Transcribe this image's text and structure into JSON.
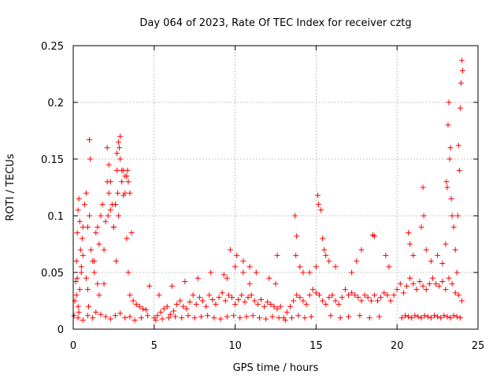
{
  "chart_data": {
    "type": "scatter",
    "title": "Day 064 of 2023, Rate Of TEC Index for receiver cztg",
    "xlabel": "GPS time / hours",
    "ylabel": "ROTI / TECUs",
    "xlim": [
      0,
      25
    ],
    "ylim": [
      0,
      0.25
    ],
    "xticks": [
      0,
      5,
      10,
      15,
      20,
      25
    ],
    "yticks": [
      0,
      0.05,
      0.1,
      0.15,
      0.2,
      0.25
    ],
    "xtick_labels": [
      "0",
      "5",
      "10",
      "15",
      "20",
      "25"
    ],
    "ytick_labels": [
      "0",
      "0.05",
      "0.1",
      "0.15",
      "0.2",
      "0.25"
    ],
    "grid": true,
    "legend": "none",
    "marker": "+",
    "color": "#ff0000",
    "series": [
      {
        "x": [
          0.05,
          0.1,
          0.15,
          0.2,
          0.25,
          0.3,
          0.35,
          0.4,
          0.45,
          0.5,
          0.55,
          0.6,
          0.7,
          0.8,
          0.9,
          1.0,
          1.1,
          1.2,
          1.3,
          1.4,
          1.5,
          1.6,
          1.7,
          1.8,
          1.9,
          2.0,
          2.1,
          2.2,
          2.3,
          2.4,
          2.5,
          2.6,
          2.7,
          2.8,
          2.9,
          3.0,
          3.1,
          3.2,
          3.3,
          3.4,
          3.5,
          3.7,
          3.9,
          4.1,
          4.3,
          4.5,
          4.7,
          0.2,
          0.25,
          0.3,
          0.35,
          0.4,
          0.5,
          0.6,
          0.8,
          0.9,
          0.95,
          1.0,
          1.05,
          1.3,
          1.5,
          1.6,
          1.9,
          2.1,
          2.15,
          2.2,
          2.3,
          2.5,
          2.6,
          2.65,
          2.7,
          2.75,
          2.8,
          2.85,
          2.9,
          3.0,
          3.1,
          3.2,
          3.3,
          3.35,
          3.4,
          3.5,
          3.6,
          0.3,
          0.6,
          0.9,
          1.2,
          1.4,
          1.7,
          2.0,
          2.3,
          2.6,
          2.9,
          3.2,
          3.5,
          3.8,
          4.2,
          4.6,
          5.0,
          5.2,
          5.4,
          5.6,
          5.8,
          6.0,
          6.2,
          6.4,
          6.6,
          6.8,
          7.0,
          7.2,
          7.4,
          7.6,
          7.8,
          8.0,
          8.2,
          8.4,
          8.6,
          8.8,
          9.0,
          9.2,
          9.4,
          9.6,
          9.8,
          10.0,
          10.2,
          10.4,
          10.6,
          10.8,
          11.0,
          11.2,
          11.4,
          11.6,
          11.8,
          12.0,
          12.2,
          12.4,
          12.6,
          12.8,
          5.1,
          5.5,
          5.9,
          6.3,
          6.7,
          7.1,
          7.5,
          7.9,
          8.3,
          8.7,
          9.1,
          9.5,
          9.9,
          10.3,
          10.7,
          11.1,
          11.5,
          11.9,
          12.3,
          12.7,
          5.3,
          6.1,
          6.9,
          7.7,
          8.5,
          9.3,
          9.7,
          10.1,
          10.5,
          10.9,
          11.3,
          12.1,
          12.5,
          9.5,
          10.0,
          10.5,
          10.9,
          12.6,
          13.0,
          13.2,
          13.4,
          13.6,
          13.8,
          14.0,
          14.2,
          14.4,
          14.6,
          14.8,
          15.0,
          15.2,
          15.4,
          15.6,
          15.8,
          16.0,
          16.2,
          16.4,
          16.6,
          16.8,
          17.0,
          17.2,
          17.4,
          17.6,
          17.8,
          18.0,
          18.2,
          18.4,
          18.6,
          18.8,
          19.0,
          19.2,
          19.4,
          13.7,
          13.8,
          13.75,
          14.0,
          14.2,
          14.6,
          15.0,
          15.1,
          15.15,
          15.3,
          15.4,
          15.5,
          15.6,
          15.8,
          16.2,
          17.2,
          17.5,
          17.8,
          18.5,
          18.6,
          19.3,
          19.5,
          13.1,
          13.5,
          13.9,
          14.3,
          14.7,
          15.9,
          16.5,
          17.0,
          17.7,
          18.3,
          18.9,
          19.6,
          19.8,
          20.0,
          20.2,
          20.4,
          20.6,
          20.8,
          21.0,
          21.2,
          21.4,
          21.6,
          21.8,
          22.0,
          22.2,
          22.4,
          22.6,
          22.8,
          23.0,
          23.2,
          23.4,
          23.6,
          23.8,
          24.0,
          20.3,
          20.5,
          20.7,
          20.9,
          21.1,
          21.3,
          21.5,
          21.7,
          21.9,
          22.1,
          22.3,
          22.5,
          22.7,
          22.9,
          23.1,
          23.3,
          23.5,
          23.7,
          23.9,
          20.7,
          20.8,
          21.0,
          21.5,
          21.6,
          21.65,
          21.8,
          22.1,
          22.5,
          22.8,
          23.0,
          23.05,
          23.1,
          23.15,
          23.2,
          23.25,
          23.3,
          23.35,
          23.4,
          23.5,
          23.6,
          23.7,
          23.75,
          23.8,
          23.85,
          23.9,
          23.95,
          24.0,
          24.05
        ],
        "y": [
          0.012,
          0.025,
          0.042,
          0.06,
          0.085,
          0.105,
          0.115,
          0.095,
          0.07,
          0.05,
          0.08,
          0.09,
          0.11,
          0.12,
          0.09,
          0.1,
          0.07,
          0.06,
          0.05,
          0.085,
          0.09,
          0.075,
          0.1,
          0.11,
          0.04,
          0.095,
          0.13,
          0.12,
          0.105,
          0.11,
          0.09,
          0.11,
          0.155,
          0.165,
          0.17,
          0.13,
          0.14,
          0.12,
          0.08,
          0.05,
          0.03,
          0.025,
          0.022,
          0.02,
          0.018,
          0.017,
          0.038,
          0.03,
          0.045,
          0.02,
          0.015,
          0.035,
          0.055,
          0.065,
          0.045,
          0.035,
          0.02,
          0.167,
          0.15,
          0.06,
          0.04,
          0.03,
          0.07,
          0.16,
          0.1,
          0.145,
          0.13,
          0.09,
          0.11,
          0.06,
          0.14,
          0.12,
          0.1,
          0.16,
          0.15,
          0.14,
          0.118,
          0.135,
          0.135,
          0.14,
          0.13,
          0.12,
          0.085,
          0.01,
          0.008,
          0.012,
          0.01,
          0.015,
          0.013,
          0.011,
          0.009,
          0.012,
          0.014,
          0.01,
          0.011,
          0.008,
          0.01,
          0.012,
          0.01,
          0.012,
          0.015,
          0.018,
          0.02,
          0.013,
          0.016,
          0.022,
          0.025,
          0.02,
          0.018,
          0.024,
          0.03,
          0.022,
          0.028,
          0.025,
          0.02,
          0.03,
          0.026,
          0.022,
          0.028,
          0.032,
          0.025,
          0.03,
          0.028,
          0.022,
          0.026,
          0.03,
          0.024,
          0.028,
          0.03,
          0.025,
          0.022,
          0.026,
          0.02,
          0.024,
          0.022,
          0.02,
          0.018,
          0.02,
          0.008,
          0.009,
          0.01,
          0.011,
          0.01,
          0.012,
          0.01,
          0.011,
          0.012,
          0.01,
          0.009,
          0.011,
          0.012,
          0.01,
          0.011,
          0.012,
          0.01,
          0.009,
          0.011,
          0.01,
          0.03,
          0.038,
          0.042,
          0.045,
          0.05,
          0.048,
          0.07,
          0.065,
          0.06,
          0.055,
          0.05,
          0.045,
          0.04,
          0.045,
          0.055,
          0.05,
          0.04,
          0.065,
          0.01,
          0.015,
          0.02,
          0.025,
          0.03,
          0.028,
          0.025,
          0.022,
          0.03,
          0.035,
          0.032,
          0.03,
          0.025,
          0.022,
          0.028,
          0.03,
          0.025,
          0.022,
          0.028,
          0.035,
          0.03,
          0.032,
          0.03,
          0.028,
          0.025,
          0.03,
          0.028,
          0.025,
          0.03,
          0.025,
          0.028,
          0.032,
          0.03,
          0.1,
          0.082,
          0.065,
          0.055,
          0.05,
          0.05,
          0.055,
          0.118,
          0.11,
          0.105,
          0.08,
          0.07,
          0.065,
          0.06,
          0.055,
          0.05,
          0.06,
          0.07,
          0.083,
          0.082,
          0.065,
          0.055,
          0.008,
          0.01,
          0.012,
          0.01,
          0.011,
          0.012,
          0.01,
          0.011,
          0.012,
          0.01,
          0.011,
          0.025,
          0.03,
          0.035,
          0.04,
          0.032,
          0.038,
          0.045,
          0.04,
          0.035,
          0.042,
          0.038,
          0.035,
          0.04,
          0.045,
          0.04,
          0.038,
          0.042,
          0.035,
          0.045,
          0.04,
          0.032,
          0.03,
          0.025,
          0.01,
          0.012,
          0.011,
          0.01,
          0.012,
          0.011,
          0.01,
          0.012,
          0.011,
          0.01,
          0.012,
          0.011,
          0.01,
          0.012,
          0.011,
          0.01,
          0.012,
          0.011,
          0.01,
          0.085,
          0.075,
          0.065,
          0.09,
          0.125,
          0.1,
          0.07,
          0.06,
          0.065,
          0.058,
          0.075,
          0.13,
          0.125,
          0.18,
          0.2,
          0.15,
          0.16,
          0.115,
          0.1,
          0.09,
          0.07,
          0.05,
          0.1,
          0.162,
          0.14,
          0.195,
          0.217,
          0.237,
          0.228
        ]
      }
    ]
  }
}
